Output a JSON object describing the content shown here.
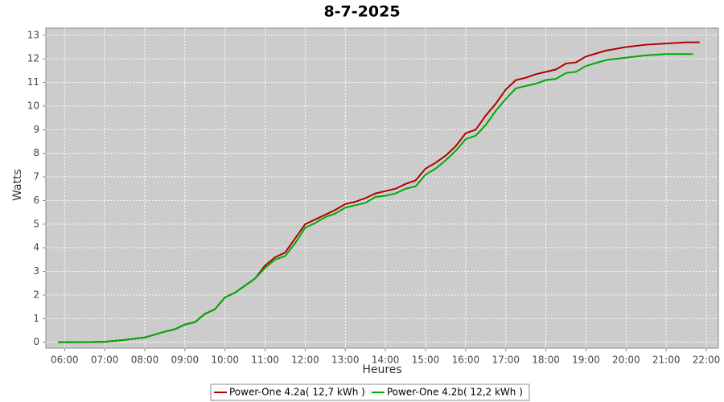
{
  "chart_data": {
    "type": "line",
    "title": "8-7-2025",
    "x_label": "Heures",
    "y_label": "Watts",
    "x": [
      "05:50",
      "06:30",
      "07:00",
      "07:30",
      "08:00",
      "08:30",
      "08:45",
      "09:00",
      "09:15",
      "09:30",
      "09:45",
      "10:00",
      "10:15",
      "10:30",
      "10:45",
      "11:00",
      "11:15",
      "11:30",
      "11:45",
      "12:00",
      "12:15",
      "12:30",
      "12:45",
      "13:00",
      "13:15",
      "13:30",
      "13:45",
      "14:00",
      "14:15",
      "14:30",
      "14:45",
      "15:00",
      "15:15",
      "15:30",
      "15:45",
      "16:00",
      "16:15",
      "16:30",
      "16:45",
      "17:00",
      "17:15",
      "17:30",
      "17:45",
      "18:00",
      "18:15",
      "18:30",
      "18:45",
      "19:00",
      "19:30",
      "20:00",
      "20:30",
      "21:00",
      "21:30",
      "21:40",
      "21:50"
    ],
    "series": [
      {
        "name": "Power-One 4.2a( 12,7 kWh )",
        "color": "#b00000",
        "values": [
          0,
          0,
          0.02,
          0.1,
          0.2,
          0.45,
          0.55,
          0.75,
          0.85,
          1.2,
          1.4,
          1.9,
          2.1,
          2.4,
          2.7,
          3.25,
          3.6,
          3.8,
          4.4,
          5.0,
          5.2,
          5.4,
          5.6,
          5.85,
          5.95,
          6.1,
          6.3,
          6.4,
          6.5,
          6.7,
          6.85,
          7.35,
          7.6,
          7.9,
          8.3,
          8.85,
          9.0,
          9.6,
          10.1,
          10.7,
          11.1,
          11.2,
          11.35,
          11.45,
          11.55,
          11.8,
          11.85,
          12.1,
          12.35,
          12.5,
          12.6,
          12.65,
          12.7,
          12.7,
          12.7
        ]
      },
      {
        "name": "Power-One 4.2b( 12,2 kWh )",
        "color": "#00aa00",
        "values": [
          0,
          0,
          0.02,
          0.1,
          0.2,
          0.45,
          0.55,
          0.75,
          0.85,
          1.2,
          1.4,
          1.9,
          2.1,
          2.4,
          2.7,
          3.15,
          3.5,
          3.65,
          4.2,
          4.85,
          5.05,
          5.3,
          5.45,
          5.7,
          5.8,
          5.9,
          6.15,
          6.2,
          6.3,
          6.5,
          6.6,
          7.1,
          7.35,
          7.7,
          8.1,
          8.6,
          8.75,
          9.2,
          9.8,
          10.3,
          10.75,
          10.85,
          10.95,
          11.1,
          11.15,
          11.4,
          11.45,
          11.7,
          11.95,
          12.05,
          12.15,
          12.2,
          12.2,
          12.2,
          null
        ]
      }
    ],
    "xlim": [
      "05:32",
      "22:18"
    ],
    "xticks": [
      "06:00",
      "07:00",
      "08:00",
      "09:00",
      "10:00",
      "11:00",
      "12:00",
      "13:00",
      "14:00",
      "15:00",
      "16:00",
      "17:00",
      "18:00",
      "19:00",
      "20:00",
      "21:00",
      "22:00"
    ],
    "ylim": [
      -0.25,
      13.3
    ],
    "yticks": [
      0,
      1,
      2,
      3,
      4,
      5,
      6,
      7,
      8,
      9,
      10,
      11,
      12,
      13
    ],
    "grid": true,
    "legend": "bottom",
    "plot_background": "#cccccc"
  }
}
